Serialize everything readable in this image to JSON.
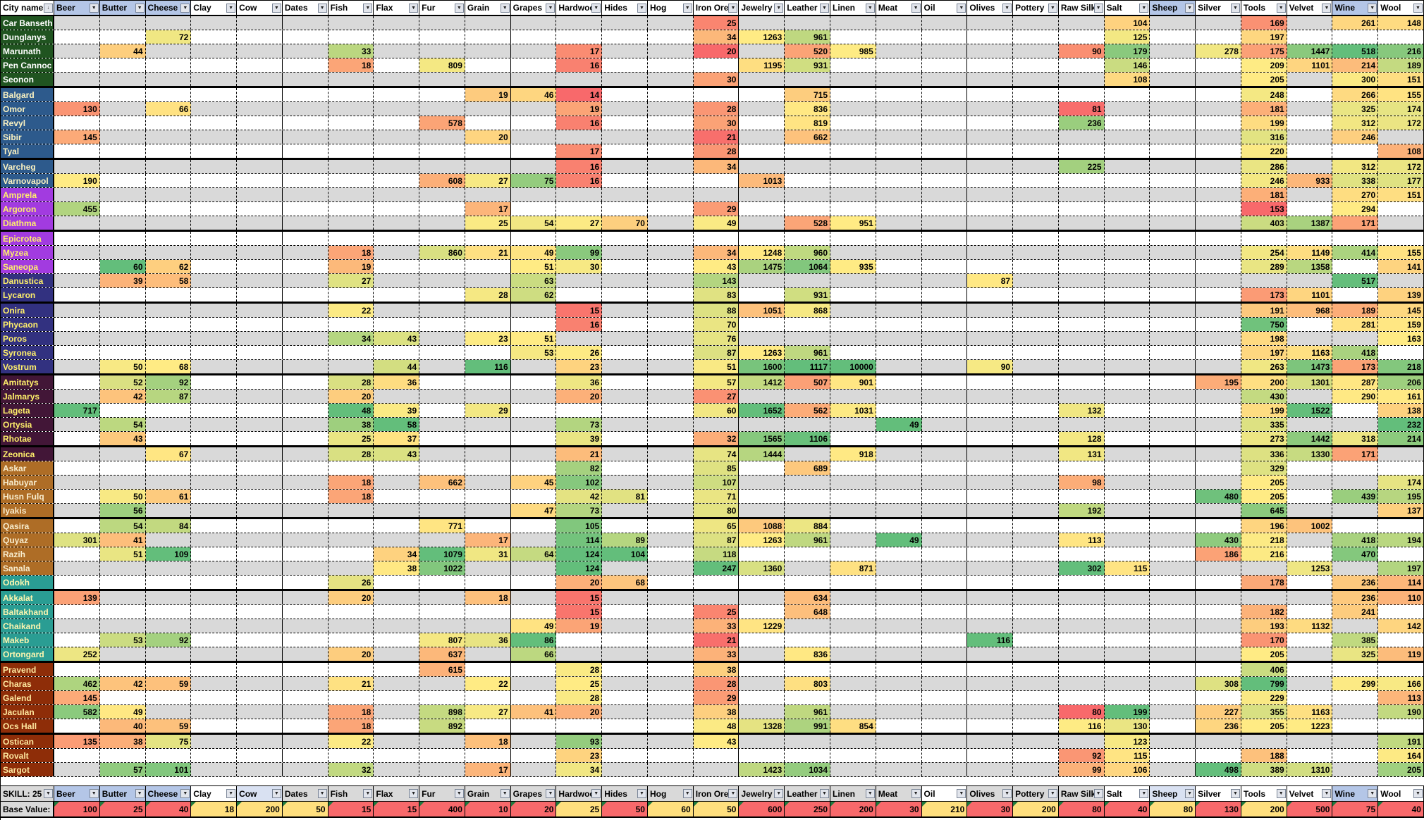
{
  "header": {
    "city_label": "City name"
  },
  "footer": {
    "skill_label": "SKILL: 25",
    "base_label": "Base Value:"
  },
  "colors": {
    "scale_red": "#F8696B",
    "scale_yellow": "#FFEB84",
    "scale_green": "#63BE7B",
    "row_gray": "#D9D9D9",
    "row_white": "#FFFFFF",
    "hdr_blue": "#B4C6E7",
    "hdr_pale_blue": "#D9E1F2",
    "hdr_gray": "#D9D9D9",
    "hdr_white": "#FFFFFF",
    "base_red": "#F8696B",
    "base_yellow": "#FFDF7E",
    "comment_triangle": "#1F7A3D"
  },
  "goods": [
    {
      "label": "Beer",
      "base": 100,
      "base_tone": "red",
      "top_bg": "blue",
      "bottom_bg": "blue"
    },
    {
      "label": "Butter",
      "base": 25,
      "base_tone": "red",
      "top_bg": "blue",
      "bottom_bg": "blue"
    },
    {
      "label": "Cheese",
      "base": 40,
      "base_tone": "red",
      "top_bg": "blue",
      "bottom_bg": "blue"
    },
    {
      "label": "Clay",
      "base": 18,
      "base_tone": "yellow",
      "top_bg": "white",
      "bottom_bg": "white"
    },
    {
      "label": "Cow",
      "base": 200,
      "base_tone": "yellow",
      "top_bg": "white",
      "bottom_bg": "paleblue"
    },
    {
      "label": "Dates",
      "base": 50,
      "base_tone": "yellow",
      "top_bg": "white",
      "bottom_bg": "gray"
    },
    {
      "label": "Fish",
      "base": 15,
      "base_tone": "red",
      "top_bg": "white",
      "bottom_bg": "gray"
    },
    {
      "label": "Flax",
      "base": 15,
      "base_tone": "red",
      "top_bg": "white",
      "bottom_bg": "gray"
    },
    {
      "label": "Fur",
      "base": 400,
      "base_tone": "red",
      "top_bg": "white",
      "bottom_bg": "gray"
    },
    {
      "label": "Grain",
      "base": 10,
      "base_tone": "red",
      "top_bg": "white",
      "bottom_bg": "gray"
    },
    {
      "label": "Grapes",
      "base": 20,
      "base_tone": "red",
      "top_bg": "white",
      "bottom_bg": "gray"
    },
    {
      "label": "Hardwood",
      "base": 25,
      "base_tone": "yellow",
      "top_bg": "white",
      "bottom_bg": "gray"
    },
    {
      "label": "Hides",
      "base": 50,
      "base_tone": "red",
      "top_bg": "white",
      "bottom_bg": "gray"
    },
    {
      "label": "Hog",
      "base": 60,
      "base_tone": "yellow",
      "top_bg": "white",
      "bottom_bg": "gray"
    },
    {
      "label": "Iron Ore",
      "base": 50,
      "base_tone": "yellow",
      "top_bg": "white",
      "bottom_bg": "gray"
    },
    {
      "label": "Jewelry",
      "base": 600,
      "base_tone": "red",
      "top_bg": "white",
      "bottom_bg": "gray"
    },
    {
      "label": "Leather",
      "base": 250,
      "base_tone": "red",
      "top_bg": "white",
      "bottom_bg": "gray"
    },
    {
      "label": "Linen",
      "base": 200,
      "base_tone": "red",
      "top_bg": "white",
      "bottom_bg": "gray"
    },
    {
      "label": "Meat",
      "base": 30,
      "base_tone": "red",
      "top_bg": "white",
      "bottom_bg": "gray"
    },
    {
      "label": "Oil",
      "base": 210,
      "base_tone": "yellow",
      "top_bg": "white",
      "bottom_bg": "white"
    },
    {
      "label": "Olives",
      "base": 30,
      "base_tone": "red",
      "top_bg": "white",
      "bottom_bg": "gray"
    },
    {
      "label": "Pottery",
      "base": 200,
      "base_tone": "yellow",
      "top_bg": "white",
      "bottom_bg": "gray"
    },
    {
      "label": "Raw Silk",
      "base": 80,
      "base_tone": "red",
      "top_bg": "white",
      "bottom_bg": "gray"
    },
    {
      "label": "Salt",
      "base": 40,
      "base_tone": "red",
      "top_bg": "white",
      "bottom_bg": "white"
    },
    {
      "label": "Sheep",
      "base": 80,
      "base_tone": "yellow",
      "top_bg": "blue",
      "bottom_bg": "paleblue"
    },
    {
      "label": "Silver",
      "base": 130,
      "base_tone": "red",
      "top_bg": "white",
      "bottom_bg": "white"
    },
    {
      "label": "Tools",
      "base": 200,
      "base_tone": "yellow",
      "top_bg": "white",
      "bottom_bg": "white"
    },
    {
      "label": "Velvet",
      "base": 500,
      "base_tone": "red",
      "top_bg": "white",
      "bottom_bg": "white"
    },
    {
      "label": "Wine",
      "base": 75,
      "base_tone": "red",
      "top_bg": "blue",
      "bottom_bg": "blue"
    },
    {
      "label": "Wool",
      "base": 40,
      "base_tone": "red",
      "top_bg": "white",
      "bottom_bg": "white"
    }
  ],
  "groups": [
    {
      "name": "dark-green",
      "bg": "#205420",
      "fg": "#FFFFFF"
    },
    {
      "name": "steel-blue",
      "bg": "#2D5A8C",
      "fg": "#FBF3C2"
    },
    {
      "name": "bright-purple",
      "bg": "#A23BE0",
      "fg": "#FFF06B"
    },
    {
      "name": "indigo",
      "bg": "#323180",
      "fg": "#FFF06B"
    },
    {
      "name": "dark-plum",
      "bg": "#421637",
      "fg": "#FFF06B"
    },
    {
      "name": "brown",
      "bg": "#AE6D26",
      "fg": "#F8EDCE"
    },
    {
      "name": "teal",
      "bg": "#2A9D93",
      "fg": "#FDF6B0"
    },
    {
      "name": "brick-red",
      "bg": "#8E2D08",
      "fg": "#FFE9A0"
    }
  ],
  "cities": [
    {
      "name": "Car Banseth",
      "group": 0,
      "prices": {
        "Iron Ore": 25,
        "Salt": 104,
        "Tools": 169,
        "Wine": 261,
        "Wool": 148
      }
    },
    {
      "name": "Dunglanys",
      "group": 0,
      "prices": {
        "Cheese": 72,
        "Iron Ore": 34,
        "Jewelry": 1263,
        "Leather": 961,
        "Salt": 125,
        "Tools": 197
      }
    },
    {
      "name": "Marunath",
      "group": 0,
      "prices": {
        "Butter": 44,
        "Fish": 33,
        "Hardwood": 17,
        "Iron Ore": 20,
        "Leather": 520,
        "Linen": 985,
        "Raw Silk": 90,
        "Salt": 179,
        "Silver": 278,
        "Tools": 175,
        "Velvet": 1447,
        "Wine": 518,
        "Wool": 216
      }
    },
    {
      "name": "Pen Cannoc",
      "group": 0,
      "prices": {
        "Fish": 18,
        "Fur": 809,
        "Hardwood": 16,
        "Jewelry": 1195,
        "Leather": 931,
        "Salt": 146,
        "Tools": 209,
        "Velvet": 1101,
        "Wine": 214,
        "Wool": 189
      }
    },
    {
      "name": "Seonon",
      "group": 0,
      "prices": {
        "Iron Ore": 30,
        "Salt": 108,
        "Tools": 205,
        "Wine": 300,
        "Wool": 151
      }
    },
    {
      "name": "Balgard",
      "group": 1,
      "prices": {
        "Grain": 19,
        "Grapes": 46,
        "Hardwood": 14,
        "Leather": 715,
        "Tools": 248,
        "Wine": 266,
        "Wool": 155
      }
    },
    {
      "name": "Omor",
      "group": 1,
      "prices": {
        "Beer": 130,
        "Cheese": 66,
        "Hardwood": 19,
        "Iron Ore": 28,
        "Leather": 836,
        "Raw Silk": 81,
        "Tools": 181,
        "Wine": 325,
        "Wool": 174
      }
    },
    {
      "name": "Revyl",
      "group": 1,
      "prices": {
        "Fur": 578,
        "Hardwood": 16,
        "Iron Ore": 30,
        "Leather": 819,
        "Raw Silk": 236,
        "Tools": 199,
        "Wine": 312,
        "Wool": 172
      }
    },
    {
      "name": "Sibir",
      "group": 1,
      "prices": {
        "Beer": 145,
        "Grain": 20,
        "Iron Ore": 21,
        "Leather": 662,
        "Tools": 316,
        "Wine": 246
      }
    },
    {
      "name": "Tyal",
      "group": 1,
      "prices": {
        "Hardwood": 17,
        "Iron Ore": 28,
        "Tools": 220,
        "Wool": 108
      }
    },
    {
      "name": "Varcheg",
      "group": 1,
      "prices": {
        "Hardwood": 16,
        "Iron Ore": 34,
        "Raw Silk": 225,
        "Tools": 286,
        "Wine": 312,
        "Wool": 172
      }
    },
    {
      "name": "Varnovapol",
      "group": 1,
      "prices": {
        "Beer": 190,
        "Fur": 608,
        "Grain": 27,
        "Grapes": 75,
        "Hardwood": 16,
        "Jewelry": 1013,
        "Tools": 246,
        "Velvet": 933,
        "Wine": 338,
        "Wool": 177
      }
    },
    {
      "name": "Amprela",
      "group": 2,
      "prices": {
        "Tools": 181,
        "Wine": 270,
        "Wool": 151
      }
    },
    {
      "name": "Argoron",
      "group": 2,
      "prices": {
        "Beer": 455,
        "Grain": 17,
        "Iron Ore": 29,
        "Tools": 153,
        "Wine": 294
      }
    },
    {
      "name": "Diathma",
      "group": 2,
      "prices": {
        "Grain": 25,
        "Grapes": 54,
        "Hardwood": 27,
        "Hides": 70,
        "Iron Ore": 49,
        "Leather": 528,
        "Linen": 951,
        "Tools": 403,
        "Velvet": 1387,
        "Wine": 171
      }
    },
    {
      "name": "Epicrotea",
      "group": 2,
      "prices": {}
    },
    {
      "name": "Myzea",
      "group": 2,
      "prices": {
        "Fish": 18,
        "Fur": 860,
        "Grain": 21,
        "Grapes": 49,
        "Hardwood": 99,
        "Iron Ore": 34,
        "Jewelry": 1248,
        "Leather": 960,
        "Tools": 254,
        "Velvet": 1149,
        "Wine": 414,
        "Wool": 155
      }
    },
    {
      "name": "Saneopa",
      "group": 2,
      "prices": {
        "Butter": 60,
        "Cheese": 62,
        "Fish": 19,
        "Grapes": 51,
        "Hardwood": 30,
        "Iron Ore": 43,
        "Jewelry": 1475,
        "Leather": 1064,
        "Linen": 935,
        "Tools": 289,
        "Velvet": 1358,
        "Wool": 141
      }
    },
    {
      "name": "Danustica",
      "group": 3,
      "prices": {
        "Butter": 39,
        "Cheese": 58,
        "Fish": 27,
        "Grapes": 63,
        "Iron Ore": 143,
        "Olives": 87,
        "Wine": 517
      }
    },
    {
      "name": "Lycaron",
      "group": 3,
      "prices": {
        "Grain": 28,
        "Grapes": 62,
        "Iron Ore": 83,
        "Leather": 931,
        "Tools": 173,
        "Velvet": 1101,
        "Wool": 139
      }
    },
    {
      "name": "Onira",
      "group": 3,
      "prices": {
        "Fish": 22,
        "Hardwood": 15,
        "Iron Ore": 88,
        "Jewelry": 1051,
        "Leather": 868,
        "Tools": 191,
        "Velvet": 968,
        "Wine": 189,
        "Wool": 145
      }
    },
    {
      "name": "Phycaon",
      "group": 3,
      "prices": {
        "Hardwood": 16,
        "Iron Ore": 70,
        "Tools": 750,
        "Wine": 281,
        "Wool": 159
      }
    },
    {
      "name": "Poros",
      "group": 3,
      "prices": {
        "Fish": 34,
        "Flax": 43,
        "Grain": 23,
        "Grapes": 51,
        "Iron Ore": 76,
        "Tools": 198,
        "Wool": 163
      }
    },
    {
      "name": "Syronea",
      "group": 3,
      "prices": {
        "Grapes": 53,
        "Hardwood": 26,
        "Iron Ore": 87,
        "Jewelry": 1263,
        "Leather": 961,
        "Tools": 197,
        "Velvet": 1163,
        "Wine": 418
      }
    },
    {
      "name": "Vostrum",
      "group": 3,
      "prices": {
        "Butter": 50,
        "Cheese": 68,
        "Flax": 44,
        "Grain": 116,
        "Hardwood": 23,
        "Iron Ore": 51,
        "Jewelry": 1600,
        "Leather": 1117,
        "Linen": 10000,
        "Olives": 90,
        "Tools": 263,
        "Velvet": 1473,
        "Wine": 173,
        "Wool": 218
      }
    },
    {
      "name": "Amitatys",
      "group": 4,
      "prices": {
        "Butter": 52,
        "Cheese": 92,
        "Fish": 28,
        "Flax": 36,
        "Hardwood": 36,
        "Iron Ore": 57,
        "Jewelry": 1412,
        "Leather": 507,
        "Linen": 901,
        "Silver": 195,
        "Tools": 200,
        "Velvet": 1301,
        "Wine": 287,
        "Wool": 206
      }
    },
    {
      "name": "Jalmarys",
      "group": 4,
      "prices": {
        "Butter": 42,
        "Cheese": 87,
        "Fish": 20,
        "Hardwood": 20,
        "Iron Ore": 27,
        "Tools": 430,
        "Wine": 290,
        "Wool": 161
      }
    },
    {
      "name": "Lageta",
      "group": 4,
      "prices": {
        "Beer": 717,
        "Fish": 48,
        "Flax": 39,
        "Grain": 29,
        "Iron Ore": 60,
        "Jewelry": 1652,
        "Leather": 562,
        "Linen": 1031,
        "Raw Silk": 132,
        "Tools": 199,
        "Velvet": 1522,
        "Wool": 138
      }
    },
    {
      "name": "Ortysia",
      "group": 4,
      "prices": {
        "Butter": 54,
        "Fish": 38,
        "Flax": 58,
        "Hardwood": 73,
        "Meat": 49,
        "Tools": 335,
        "Wool": 232
      }
    },
    {
      "name": "Rhotae",
      "group": 4,
      "prices": {
        "Butter": 43,
        "Fish": 25,
        "Flax": 37,
        "Hardwood": 39,
        "Iron Ore": 32,
        "Jewelry": 1565,
        "Leather": 1106,
        "Raw Silk": 128,
        "Tools": 273,
        "Velvet": 1442,
        "Wine": 318,
        "Wool": 214
      }
    },
    {
      "name": "Zeonica",
      "group": 4,
      "prices": {
        "Cheese": 67,
        "Fish": 28,
        "Flax": 43,
        "Hardwood": 21,
        "Iron Ore": 74,
        "Jewelry": 1444,
        "Linen": 918,
        "Raw Silk": 131,
        "Tools": 336,
        "Velvet": 1330,
        "Wine": 171
      }
    },
    {
      "name": "Askar",
      "group": 5,
      "prices": {
        "Hardwood": 82,
        "Iron Ore": 85,
        "Leather": 689,
        "Tools": 329
      }
    },
    {
      "name": "Habuyar",
      "group": 5,
      "prices": {
        "Fish": 18,
        "Fur": 662,
        "Grapes": 45,
        "Hardwood": 102,
        "Iron Ore": 107,
        "Raw Silk": 98,
        "Tools": 205,
        "Wool": 174
      }
    },
    {
      "name": "Husn Fulq",
      "group": 5,
      "prices": {
        "Butter": 50,
        "Cheese": 61,
        "Fish": 18,
        "Hardwood": 42,
        "Hides": 81,
        "Iron Ore": 71,
        "Silver": 480,
        "Tools": 205,
        "Wine": 439,
        "Wool": 195
      }
    },
    {
      "name": "Iyakis",
      "group": 5,
      "prices": {
        "Butter": 56,
        "Grapes": 47,
        "Hardwood": 73,
        "Iron Ore": 80,
        "Raw Silk": 192,
        "Tools": 645,
        "Wool": 137
      }
    },
    {
      "name": "Qasira",
      "group": 5,
      "prices": {
        "Butter": 54,
        "Cheese": 84,
        "Fur": 771,
        "Hardwood": 105,
        "Iron Ore": 65,
        "Jewelry": 1088,
        "Leather": 884,
        "Tools": 196,
        "Velvet": 1002
      }
    },
    {
      "name": "Quyaz",
      "group": 5,
      "prices": {
        "Beer": 301,
        "Butter": 41,
        "Grain": 17,
        "Hardwood": 114,
        "Hides": 89,
        "Iron Ore": 87,
        "Jewelry": 1263,
        "Leather": 961,
        "Meat": 49,
        "Raw Silk": 113,
        "Silver": 430,
        "Tools": 218,
        "Wine": 418,
        "Wool": 194
      }
    },
    {
      "name": "Razih",
      "group": 5,
      "prices": {
        "Butter": 51,
        "Cheese": 109,
        "Flax": 34,
        "Fur": 1079,
        "Grain": 31,
        "Grapes": 64,
        "Hardwood": 124,
        "Hides": 104,
        "Iron Ore": 118,
        "Silver": 186,
        "Tools": 216,
        "Wine": 470
      }
    },
    {
      "name": "Sanala",
      "group": 5,
      "prices": {
        "Flax": 38,
        "Fur": 1022,
        "Hardwood": 124,
        "Iron Ore": 247,
        "Jewelry": 1360,
        "Linen": 871,
        "Raw Silk": 302,
        "Salt": 115,
        "Velvet": 1253,
        "Wool": 197
      }
    },
    {
      "name": "Odokh",
      "group": 6,
      "prices": {
        "Fish": 26,
        "Hardwood": 20,
        "Hides": 68,
        "Tools": 178,
        "Wine": 236,
        "Wool": 114
      }
    },
    {
      "name": "Akkalat",
      "group": 6,
      "prices": {
        "Beer": 139,
        "Fish": 20,
        "Grain": 18,
        "Hardwood": 15,
        "Leather": 634,
        "Wine": 236,
        "Wool": 110
      }
    },
    {
      "name": "Baltakhand",
      "group": 6,
      "prices": {
        "Hardwood": 15,
        "Iron Ore": 25,
        "Leather": 648,
        "Tools": 182,
        "Wine": 241
      }
    },
    {
      "name": "Chaikand",
      "group": 6,
      "prices": {
        "Grapes": 49,
        "Hardwood": 19,
        "Iron Ore": 33,
        "Jewelry": 1229,
        "Tools": 193,
        "Velvet": 1132,
        "Wool": 142
      }
    },
    {
      "name": "Makeb",
      "group": 6,
      "prices": {
        "Butter": 53,
        "Cheese": 92,
        "Fur": 807,
        "Grain": 36,
        "Grapes": 86,
        "Iron Ore": 21,
        "Olives": 116,
        "Tools": 170,
        "Wine": 385
      }
    },
    {
      "name": "Ortongard",
      "group": 6,
      "prices": {
        "Beer": 252,
        "Fish": 20,
        "Fur": 637,
        "Grapes": 66,
        "Iron Ore": 33,
        "Leather": 836,
        "Tools": 205,
        "Wine": 325,
        "Wool": 119
      }
    },
    {
      "name": "Pravend",
      "group": 7,
      "prices": {
        "Fur": 615,
        "Hardwood": 28,
        "Iron Ore": 38,
        "Tools": 406
      }
    },
    {
      "name": "Charas",
      "group": 7,
      "prices": {
        "Beer": 462,
        "Butter": 42,
        "Cheese": 59,
        "Fish": 21,
        "Grain": 22,
        "Hardwood": 25,
        "Iron Ore": 28,
        "Leather": 803,
        "Silver": 308,
        "Tools": 799,
        "Wine": 299,
        "Wool": 166
      }
    },
    {
      "name": "Galend",
      "group": 7,
      "prices": {
        "Beer": 145,
        "Hardwood": 28,
        "Iron Ore": 29,
        "Tools": 229,
        "Wool": 113
      }
    },
    {
      "name": "Jaculan",
      "group": 7,
      "prices": {
        "Beer": 582,
        "Butter": 49,
        "Fish": 18,
        "Fur": 898,
        "Grain": 27,
        "Grapes": 41,
        "Hardwood": 20,
        "Iron Ore": 38,
        "Leather": 961,
        "Raw Silk": 80,
        "Salt": 199,
        "Silver": 227,
        "Tools": 355,
        "Velvet": 1163,
        "Wool": 190
      }
    },
    {
      "name": "Ocs Hall",
      "group": 7,
      "prices": {
        "Butter": 40,
        "Cheese": 59,
        "Fish": 18,
        "Fur": 892,
        "Iron Ore": 48,
        "Jewelry": 1328,
        "Leather": 991,
        "Linen": 854,
        "Raw Silk": 116,
        "Salt": 130,
        "Silver": 236,
        "Tools": 205,
        "Velvet": 1223
      }
    },
    {
      "name": "Ostican",
      "group": 7,
      "prices": {
        "Beer": 135,
        "Butter": 38,
        "Cheese": 75,
        "Fish": 22,
        "Grain": 18,
        "Hardwood": 93,
        "Iron Ore": 43,
        "Salt": 123,
        "Wool": 191
      }
    },
    {
      "name": "Rovalt",
      "group": 7,
      "prices": {
        "Hardwood": 23,
        "Raw Silk": 92,
        "Salt": 115,
        "Tools": 188,
        "Wool": 164
      }
    },
    {
      "name": "Sargot",
      "group": 7,
      "prices": {
        "Butter": 57,
        "Cheese": 101,
        "Fish": 32,
        "Grain": 17,
        "Hardwood": 34,
        "Jewelry": 1423,
        "Leather": 1034,
        "Raw Silk": 99,
        "Salt": 106,
        "Silver": 498,
        "Tools": 389,
        "Velvet": 1310,
        "Wool": 205
      }
    }
  ],
  "icons": {
    "city_sort_filter": "sort-filter-icon",
    "column_filter": "filter-dropdown-icon"
  },
  "layout_markers": {
    "thick_row_border_after_every": 5,
    "thick_col_border_after_cols": [
      "Cow",
      "Grain",
      "Iron Ore",
      "Oil",
      "Sheep"
    ]
  }
}
